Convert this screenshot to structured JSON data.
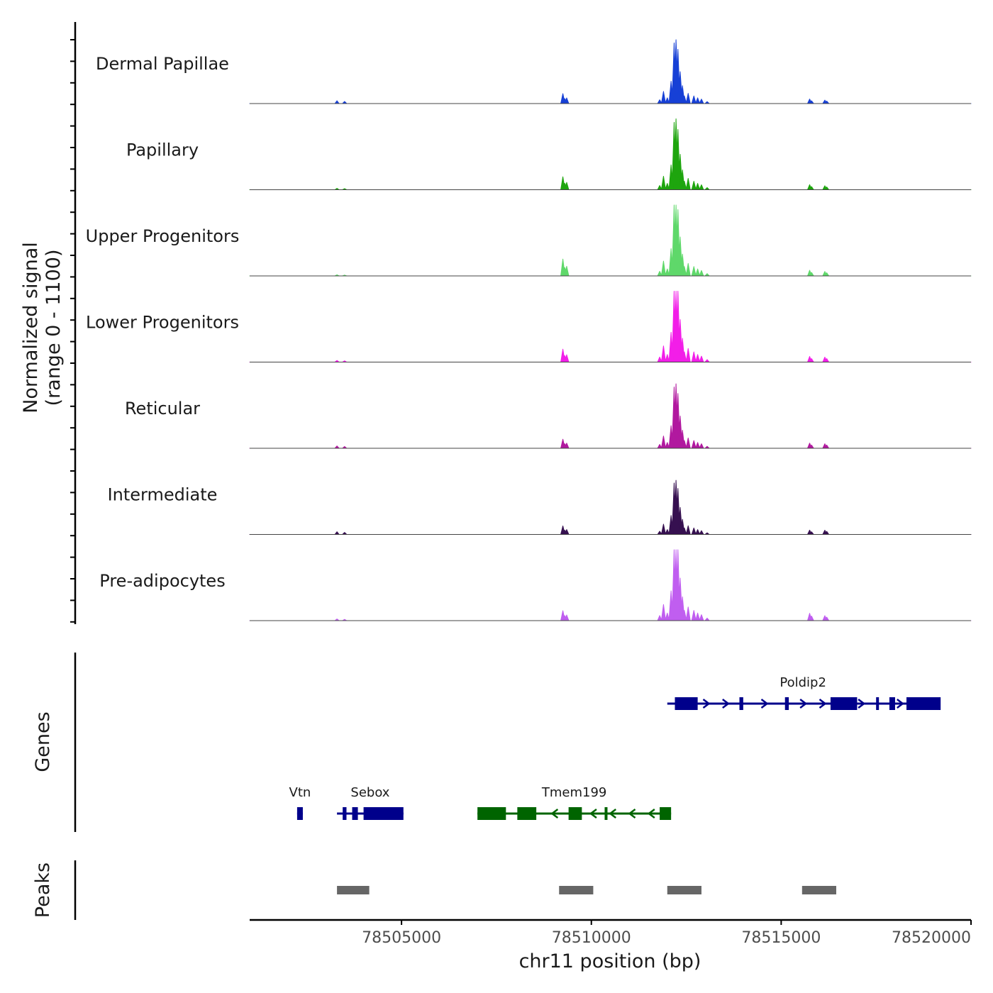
{
  "chart_data": {
    "type": "area",
    "title": "",
    "chromosome": "chr11",
    "xlabel": "chr11 position (bp)",
    "xlim": [
      78501000,
      78520000
    ],
    "xticks": [
      78505000,
      78510000,
      78515000,
      78520000
    ],
    "xtick_labels": [
      "78505000",
      "78510000",
      "78515000",
      "78520000"
    ],
    "ylabel_line1": "Normalized signal",
    "ylabel_line2": "(range 0 - 1100)",
    "ylim": [
      0,
      1100
    ],
    "peak_shape": {
      "x": [
        78503300,
        78503500,
        78509250,
        78509300,
        78509350,
        78511800,
        78511900,
        78512000,
        78512100,
        78512180,
        78512230,
        78512280,
        78512340,
        78512400,
        78512450,
        78512550,
        78512700,
        78512800,
        78512900,
        78513050,
        78515750,
        78515800,
        78516150,
        78516200
      ],
      "rel": [
        0.04,
        0.03,
        0.14,
        0.07,
        0.08,
        0.06,
        0.19,
        0.09,
        0.35,
        0.95,
        1.0,
        0.85,
        0.5,
        0.28,
        0.12,
        0.16,
        0.12,
        0.09,
        0.07,
        0.03,
        0.08,
        0.05,
        0.07,
        0.05
      ]
    },
    "series": [
      {
        "name": "Dermal Papillae",
        "color": "#1740d6",
        "max": 1100,
        "site_scale": [
          1.0,
          1.0,
          0.9,
          0.8,
          0.7
        ]
      },
      {
        "name": "Papillary",
        "color": "#1ea50e",
        "max": 1100,
        "site_scale": [
          0.5,
          1.3,
          1.0,
          0.9,
          0.8
        ]
      },
      {
        "name": "Upper Progenitors",
        "color": "#5fd86a",
        "max": 1100,
        "site_scale": [
          0.4,
          1.7,
          1.1,
          1.0,
          0.9
        ]
      },
      {
        "name": "Lower Progenitors",
        "color": "#f21ee8",
        "max": 1100,
        "site_scale": [
          0.6,
          1.3,
          1.2,
          1.0,
          1.0
        ]
      },
      {
        "name": "Reticular",
        "color": "#b1199f",
        "max": 1000,
        "site_scale": [
          0.9,
          1.0,
          1.0,
          1.0,
          1.0
        ]
      },
      {
        "name": "Intermediate",
        "color": "#361050",
        "max": 1050,
        "site_scale": [
          1.0,
          0.9,
          0.8,
          0.8,
          0.9
        ]
      },
      {
        "name": "Pre-adipocytes",
        "color": "#c05ef0",
        "max": 1100,
        "site_scale": [
          0.6,
          1.0,
          1.2,
          1.3,
          1.0
        ]
      }
    ],
    "genes": [
      {
        "name": "Vtn",
        "strand": "+",
        "color": "#00008b",
        "row": 2,
        "start": 78502250,
        "end": 78502400,
        "exons": [
          [
            78502250,
            78502400
          ]
        ]
      },
      {
        "name": "Sebox",
        "strand": "+",
        "color": "#00008b",
        "row": 2,
        "start": 78503300,
        "end": 78505050,
        "exons": [
          [
            78503450,
            78503550
          ],
          [
            78503700,
            78503850
          ],
          [
            78504000,
            78505050
          ]
        ]
      },
      {
        "name": "Tmem199",
        "strand": "-",
        "color": "#006400",
        "row": 2,
        "start": 78507000,
        "end": 78512100,
        "exons": [
          [
            78507000,
            78507750
          ],
          [
            78508050,
            78508550
          ],
          [
            78509400,
            78509750
          ],
          [
            78510350,
            78510400
          ],
          [
            78511800,
            78512100
          ]
        ]
      },
      {
        "name": "Poldip2",
        "strand": "+",
        "color": "#00008b",
        "row": 1,
        "start": 78512000,
        "end": 78519150,
        "exons": [
          [
            78512200,
            78512800
          ],
          [
            78513900,
            78514000
          ],
          [
            78515100,
            78515200
          ],
          [
            78516300,
            78517000
          ],
          [
            78517500,
            78517550
          ],
          [
            78517850,
            78518000
          ],
          [
            78518300,
            78519200
          ]
        ]
      }
    ],
    "peaks": [
      [
        78503300,
        78504150
      ],
      [
        78509150,
        78510050
      ],
      [
        78512000,
        78512900
      ],
      [
        78515550,
        78516450
      ]
    ],
    "track_labels": {
      "genes": "Genes",
      "peaks": "Peaks"
    }
  }
}
